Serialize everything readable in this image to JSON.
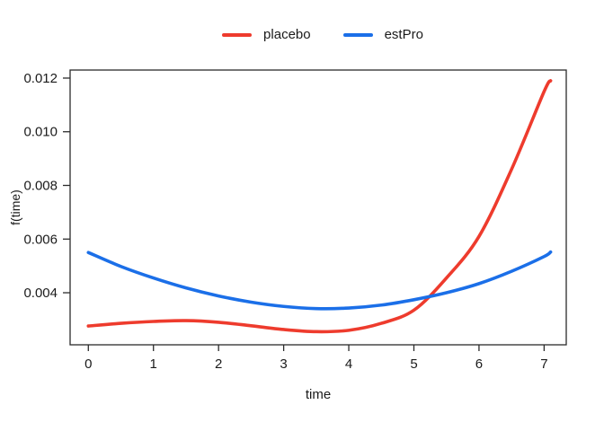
{
  "figure": {
    "background": "#ffffff",
    "text_color": "#1a1a1a",
    "axis_color": "#2b2b2b"
  },
  "legend": {
    "entries": [
      {
        "label": "placebo",
        "color": "#ee3b2d"
      },
      {
        "label": "estPro",
        "color": "#1b6fe8"
      }
    ]
  },
  "chart_data": {
    "type": "line",
    "title": "",
    "xlabel": "time",
    "ylabel": "f(time)",
    "xlim": [
      -0.28,
      7.34
    ],
    "ylim": [
      0.00206,
      0.0123
    ],
    "xticks": [
      0,
      1,
      2,
      3,
      4,
      5,
      6,
      7
    ],
    "xtick_labels": [
      "0",
      "1",
      "2",
      "3",
      "4",
      "5",
      "6",
      "7"
    ],
    "yticks": [
      0.004,
      0.006,
      0.008,
      0.01,
      0.012
    ],
    "ytick_labels": [
      "0.004",
      "0.006",
      "0.008",
      "0.010",
      "0.012"
    ],
    "grid": false,
    "legend_position": "top-center",
    "x": [
      0,
      0.5,
      1,
      1.5,
      2,
      2.5,
      3,
      3.5,
      4,
      4.5,
      5,
      5.5,
      6,
      6.5,
      7,
      7.1
    ],
    "series": [
      {
        "name": "placebo",
        "color": "#ee3b2d",
        "values": [
          0.00276,
          0.00286,
          0.00293,
          0.00296,
          0.0029,
          0.00277,
          0.00263,
          0.00255,
          0.0026,
          0.00286,
          0.00335,
          0.00455,
          0.0061,
          0.0086,
          0.0115,
          0.0119
        ]
      },
      {
        "name": "estPro",
        "color": "#1b6fe8",
        "values": [
          0.0055,
          0.00498,
          0.00455,
          0.00418,
          0.00388,
          0.00365,
          0.00349,
          0.00341,
          0.00343,
          0.00354,
          0.00374,
          0.004,
          0.00434,
          0.0048,
          0.00535,
          0.00552
        ]
      }
    ]
  }
}
